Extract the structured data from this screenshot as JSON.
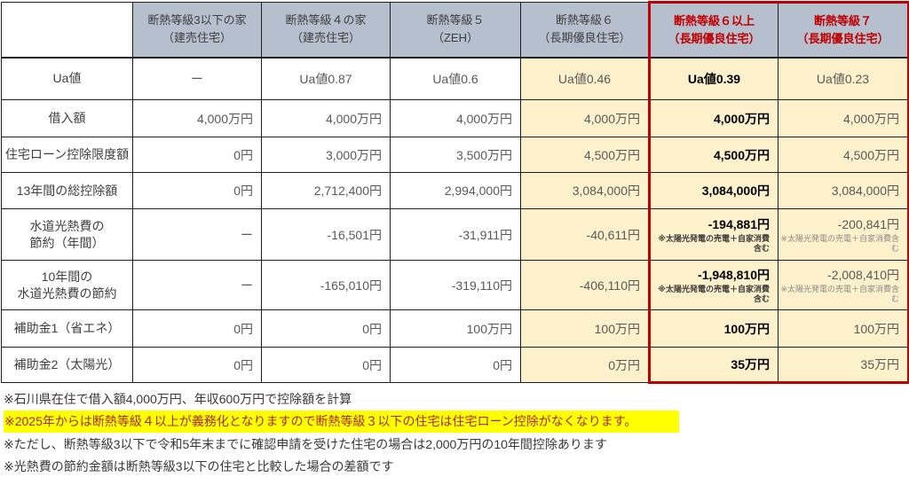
{
  "colors": {
    "header_bg": "#b6bfce",
    "cream_bg": "#fdf1cc",
    "accent_red": "#c00000",
    "highlight_yellow": "#ffff00"
  },
  "table": {
    "corner_label": "",
    "columns": [
      {
        "line1": "断熱等級3以下の家",
        "line2": "（建売住宅）",
        "emphasized": false
      },
      {
        "line1": "断熱等級４の家",
        "line2": "（建売住宅）",
        "emphasized": false
      },
      {
        "line1": "断熱等級５",
        "line2": "（ZEH）",
        "emphasized": false
      },
      {
        "line1": "断熱等級６",
        "line2": "（長期優良住宅）",
        "emphasized": false
      },
      {
        "line1": "断熱等級６以上",
        "line2": "（長期優良住宅）",
        "emphasized": true
      },
      {
        "line1": "断熱等級７",
        "line2": "（長期優良住宅）",
        "emphasized": true
      }
    ],
    "rows": [
      {
        "label": "Ua値",
        "cells": [
          "ー",
          "Ua値0.87",
          "Ua値0.6",
          "Ua値0.46",
          "Ua値0.39",
          "Ua値0.23"
        ]
      },
      {
        "label": "借入額",
        "cells": [
          "4,000万円",
          "4,000万円",
          "4,000万円",
          "4,000万円",
          "4,000万円",
          "4,000万円"
        ]
      },
      {
        "label": "住宅ローン控除限度額",
        "cells": [
          "0円",
          "3,000万円",
          "3,500万円",
          "4,500万円",
          "4,500万円",
          "4,500万円"
        ]
      },
      {
        "label": "13年間の総控除額",
        "cells": [
          "0円",
          "2,712,400円",
          "2,994,000円",
          "3,084,000円",
          "3,084,000円",
          "3,084,000円"
        ]
      },
      {
        "label": "水道光熱費の\n節約（年間）",
        "cells": [
          "ー",
          "-16,501円",
          "-31,911円",
          "-40,611円",
          "-194,881円",
          "-200,841円"
        ],
        "note": "※太陽光発電の売電＋自家消費含む"
      },
      {
        "label": "10年間の\n水道光熱費の節約",
        "cells": [
          "ー",
          "-165,010円",
          "-319,110円",
          "-406,110円",
          "-1,948,810円",
          "-2,008,410円"
        ],
        "note": "※太陽光発電の売電＋自家消費含む"
      },
      {
        "label": "補助金1（省エネ）",
        "cells": [
          "0円",
          "0円",
          "100万円",
          "100万円",
          "100万円",
          "100万円"
        ]
      },
      {
        "label": "補助金2（太陽光）",
        "cells": [
          "0円",
          "0円",
          "0円",
          "0万円",
          "35万円",
          "35万円"
        ]
      }
    ]
  },
  "footnotes": [
    {
      "text": "※石川県在住で借入額4,000万円、年収600万円で控除額を計算",
      "highlighted": false
    },
    {
      "text": "※2025年からは断熱等級４以上が義務化となりますので断熱等級３以下の住宅は住宅ローン控除がなくなります。",
      "highlighted": true
    },
    {
      "text": "※ただし、断熱等級3以下で令和5年末までに確認申請を受けた住宅の場合は2,000万円の10年間控除あります",
      "highlighted": false
    },
    {
      "text": "※光熱費の節約金額は断熱等級3以下の住宅と比較した場合の差額です",
      "highlighted": false
    }
  ]
}
